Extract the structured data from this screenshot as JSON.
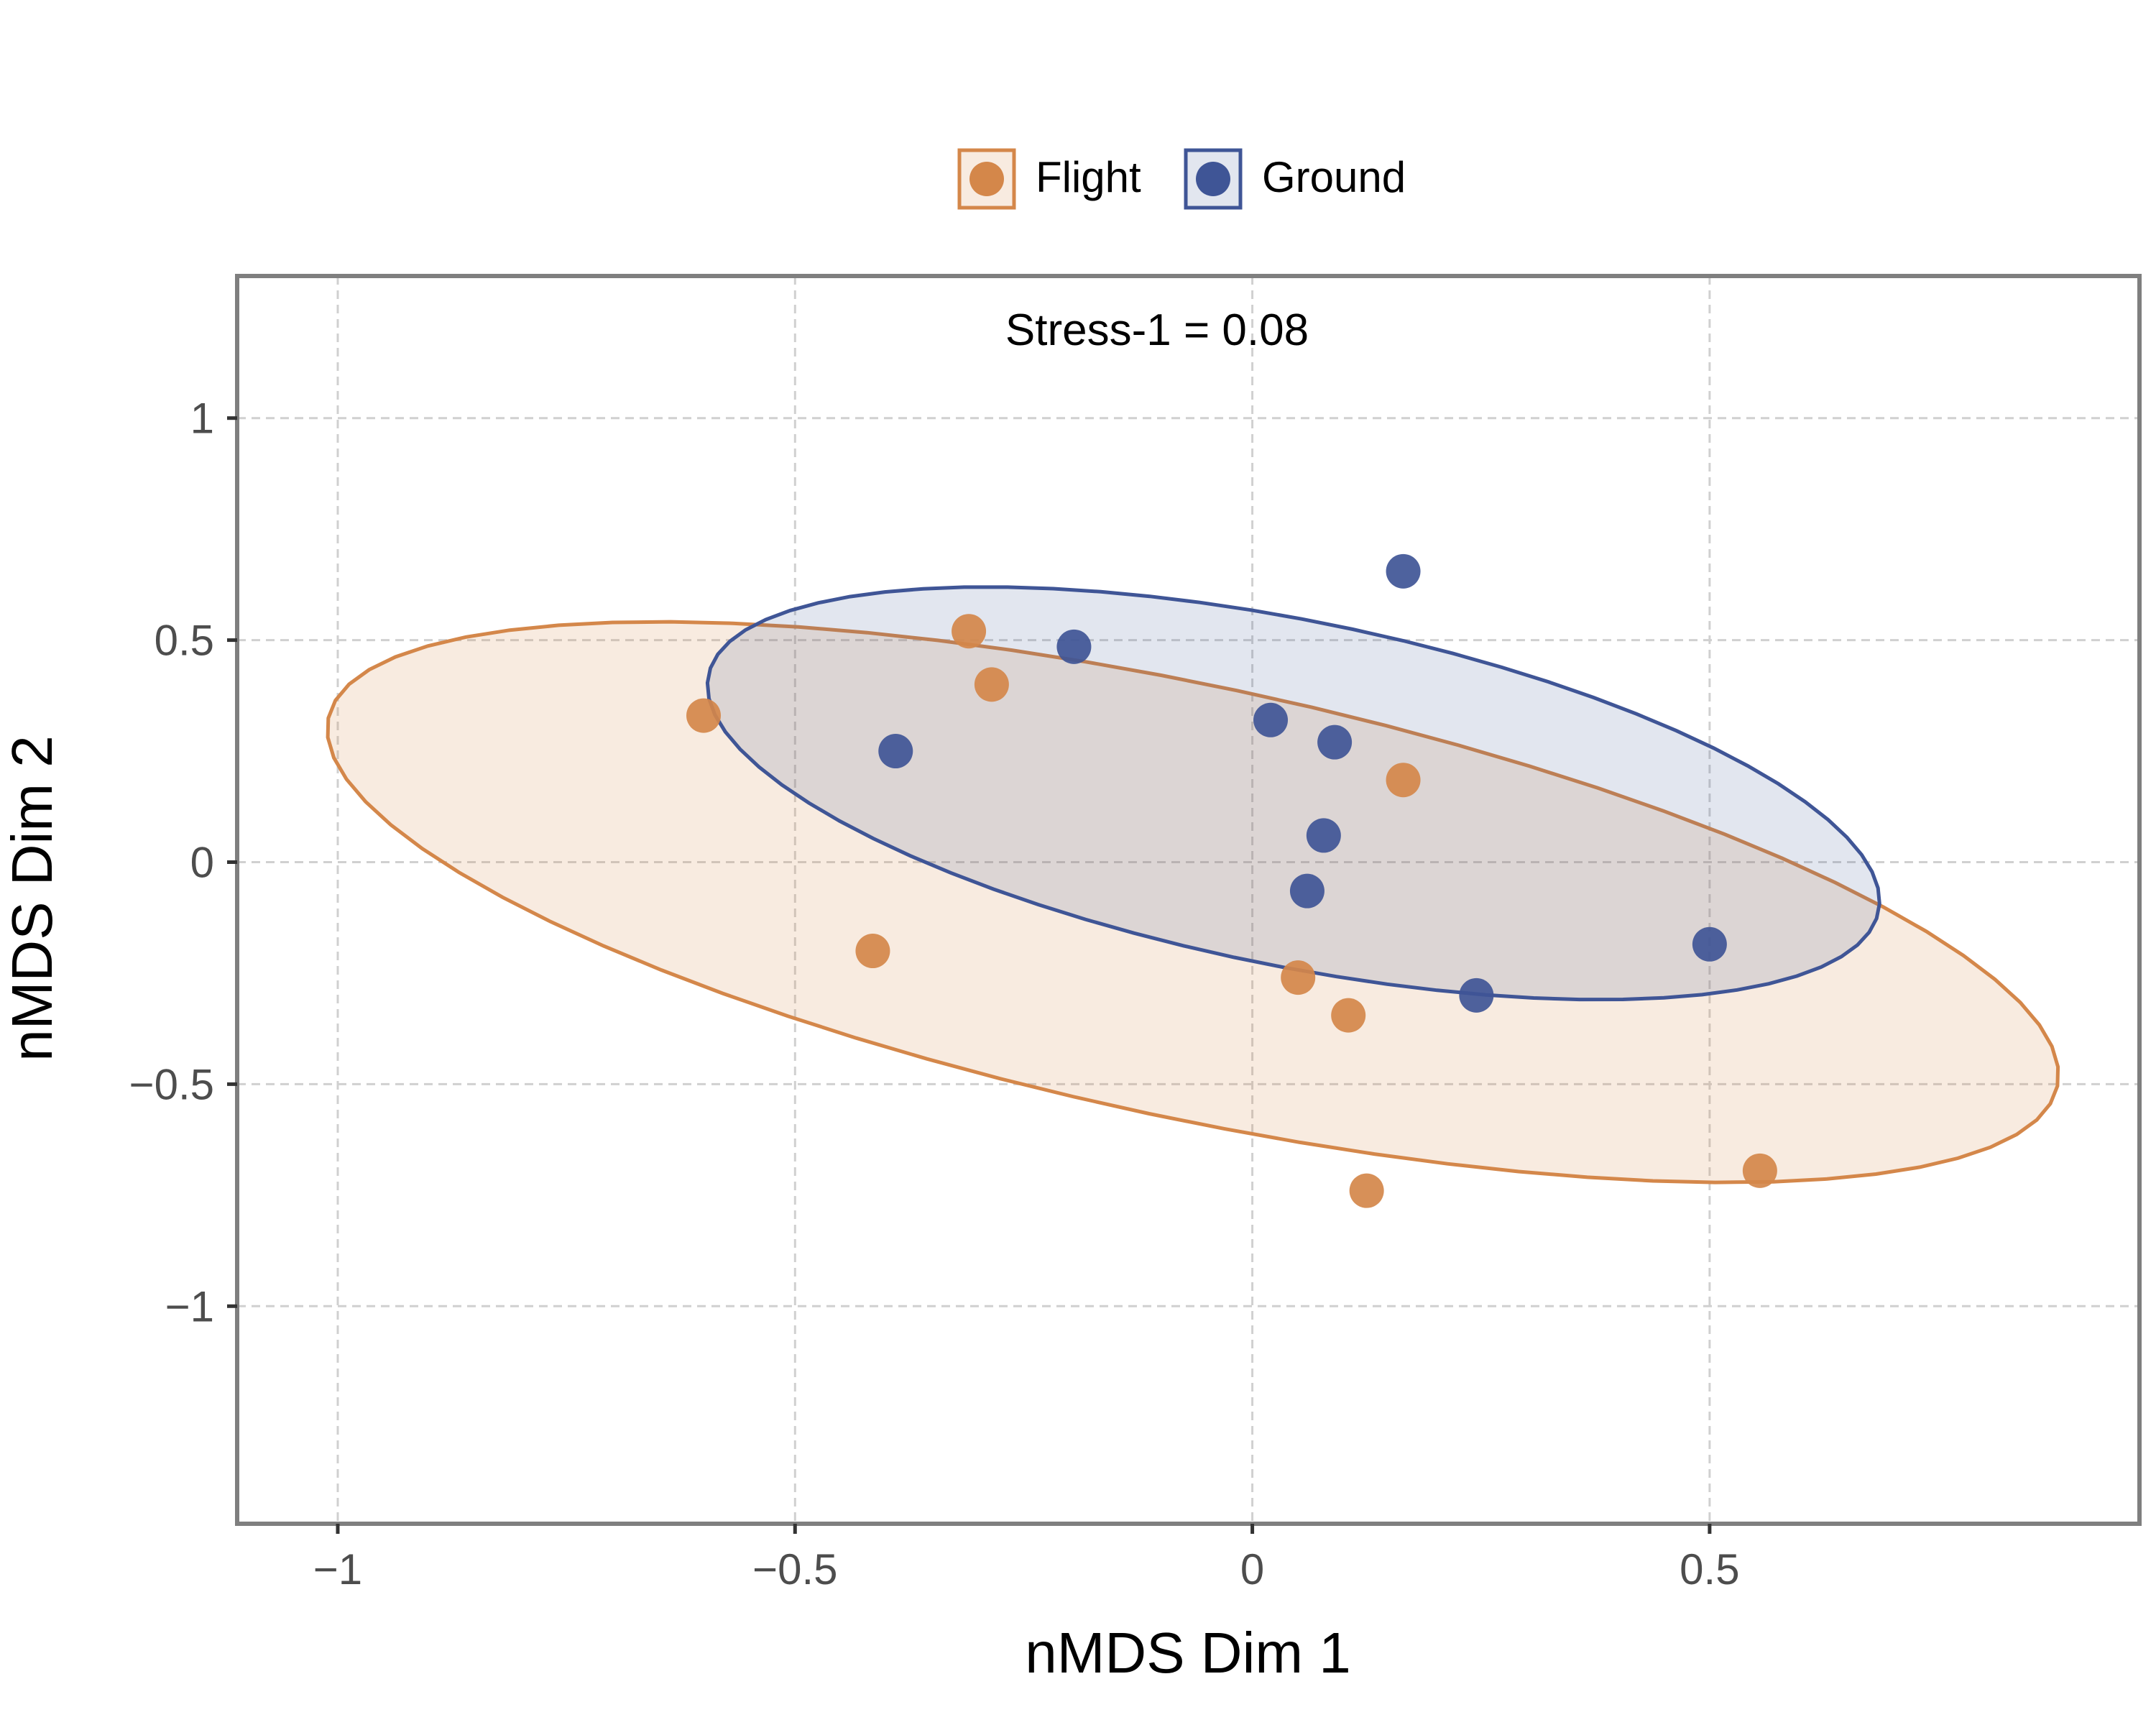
{
  "chart_data": {
    "type": "scatter",
    "title": "",
    "xlabel": "nMDS Dim 1",
    "ylabel": "nMDS Dim 2",
    "xlim": [
      -1.11,
      0.97
    ],
    "ylim": [
      -1.49,
      1.32
    ],
    "xticks": [
      -1,
      -0.5,
      0,
      0.5
    ],
    "xtick_labels": [
      "−1",
      "−0.5",
      "0",
      "0.5"
    ],
    "yticks": [
      -1,
      -0.5,
      0,
      0.5,
      1
    ],
    "ytick_labels": [
      "−1",
      "−0.5",
      "0",
      "0.5",
      "1"
    ],
    "grid": true,
    "legend_position": "top",
    "annotation": "Stress-1 = 0.08",
    "series": [
      {
        "name": "Flight",
        "color": "#D4874A",
        "points": [
          {
            "x": -0.6,
            "y": 0.33
          },
          {
            "x": -0.31,
            "y": 0.52
          },
          {
            "x": -0.285,
            "y": 0.4
          },
          {
            "x": -0.415,
            "y": -0.2
          },
          {
            "x": 0.165,
            "y": 0.185
          },
          {
            "x": 0.05,
            "y": -0.26
          },
          {
            "x": 0.105,
            "y": -0.345
          },
          {
            "x": 0.125,
            "y": -0.74
          },
          {
            "x": 0.555,
            "y": -0.695
          }
        ],
        "ellipse": {
          "center": [
            -0.065,
            -0.09
          ],
          "semi_major": 1.045,
          "semi_minor": 0.45,
          "angle_deg": -28
        }
      },
      {
        "name": "Ground",
        "color": "#3F5596",
        "points": [
          {
            "x": -0.39,
            "y": 0.25
          },
          {
            "x": -0.195,
            "y": 0.485
          },
          {
            "x": 0.165,
            "y": 0.655
          },
          {
            "x": 0.02,
            "y": 0.32
          },
          {
            "x": 0.09,
            "y": 0.27
          },
          {
            "x": 0.078,
            "y": 0.06
          },
          {
            "x": 0.06,
            "y": -0.065
          },
          {
            "x": 0.245,
            "y": -0.3
          },
          {
            "x": 0.5,
            "y": -0.185
          }
        ],
        "ellipse": {
          "center": [
            0.045,
            0.155
          ],
          "semi_major": 0.705,
          "semi_minor": 0.36,
          "angle_deg": -29
        }
      }
    ]
  }
}
